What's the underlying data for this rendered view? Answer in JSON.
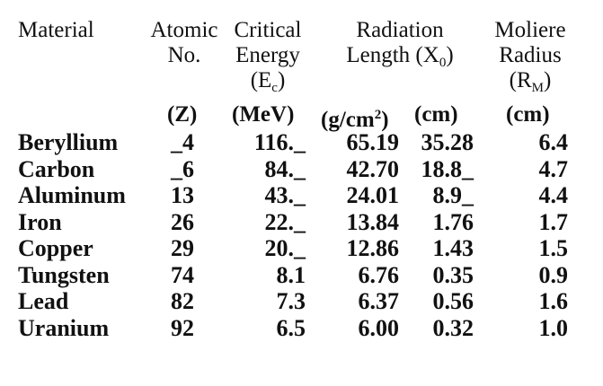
{
  "header": {
    "material": "Material",
    "atomic_line1": "Atomic",
    "atomic_line2": "No.",
    "critical_line1": "Critical",
    "critical_line2": "Energy",
    "critical_sym_main": "(E",
    "critical_sym_sub": "c",
    "critical_sym_close": ")",
    "radiation_line1": "Radiation",
    "radiation_line2_main": "Length (X",
    "radiation_line2_sub": "0",
    "radiation_line2_close": ")",
    "moliere_line1": "Moliere",
    "moliere_line2": "Radius",
    "moliere_sym_main": "(R",
    "moliere_sym_sub": "M",
    "moliere_sym_close": ")"
  },
  "units": {
    "z": "(Z)",
    "energy": "(MeV)",
    "gcm_main": "(g/cm",
    "gcm_sup": "2",
    "gcm_close": ")",
    "cm1": "(cm)",
    "cm2": "(cm)"
  },
  "rows": [
    {
      "material": "Beryllium",
      "z": "_4",
      "energy": "116._",
      "gcm2": "65.19",
      "cm": "35.28",
      "moliere": "6.4"
    },
    {
      "material": "Carbon",
      "z": "_6",
      "energy": "84._",
      "gcm2": "42.70",
      "cm": "18.8_",
      "moliere": "4.7"
    },
    {
      "material": "Aluminum",
      "z": "13",
      "energy": "43._",
      "gcm2": "24.01",
      "cm": "8.9_",
      "moliere": "4.4"
    },
    {
      "material": "Iron",
      "z": "26",
      "energy": "22._",
      "gcm2": "13.84",
      "cm": "1.76",
      "moliere": "1.7"
    },
    {
      "material": "Copper",
      "z": "29",
      "energy": "20._",
      "gcm2": "12.86",
      "cm": "1.43",
      "moliere": "1.5"
    },
    {
      "material": "Tungsten",
      "z": "74",
      "energy": "8.1",
      "gcm2": "6.76",
      "cm": "0.35",
      "moliere": "0.9"
    },
    {
      "material": "Lead",
      "z": "82",
      "energy": "7.3",
      "gcm2": "6.37",
      "cm": "0.56",
      "moliere": "1.6"
    },
    {
      "material": "Uranium",
      "z": "92",
      "energy": "6.5",
      "gcm2": "6.00",
      "cm": "0.32",
      "moliere": "1.0"
    }
  ]
}
